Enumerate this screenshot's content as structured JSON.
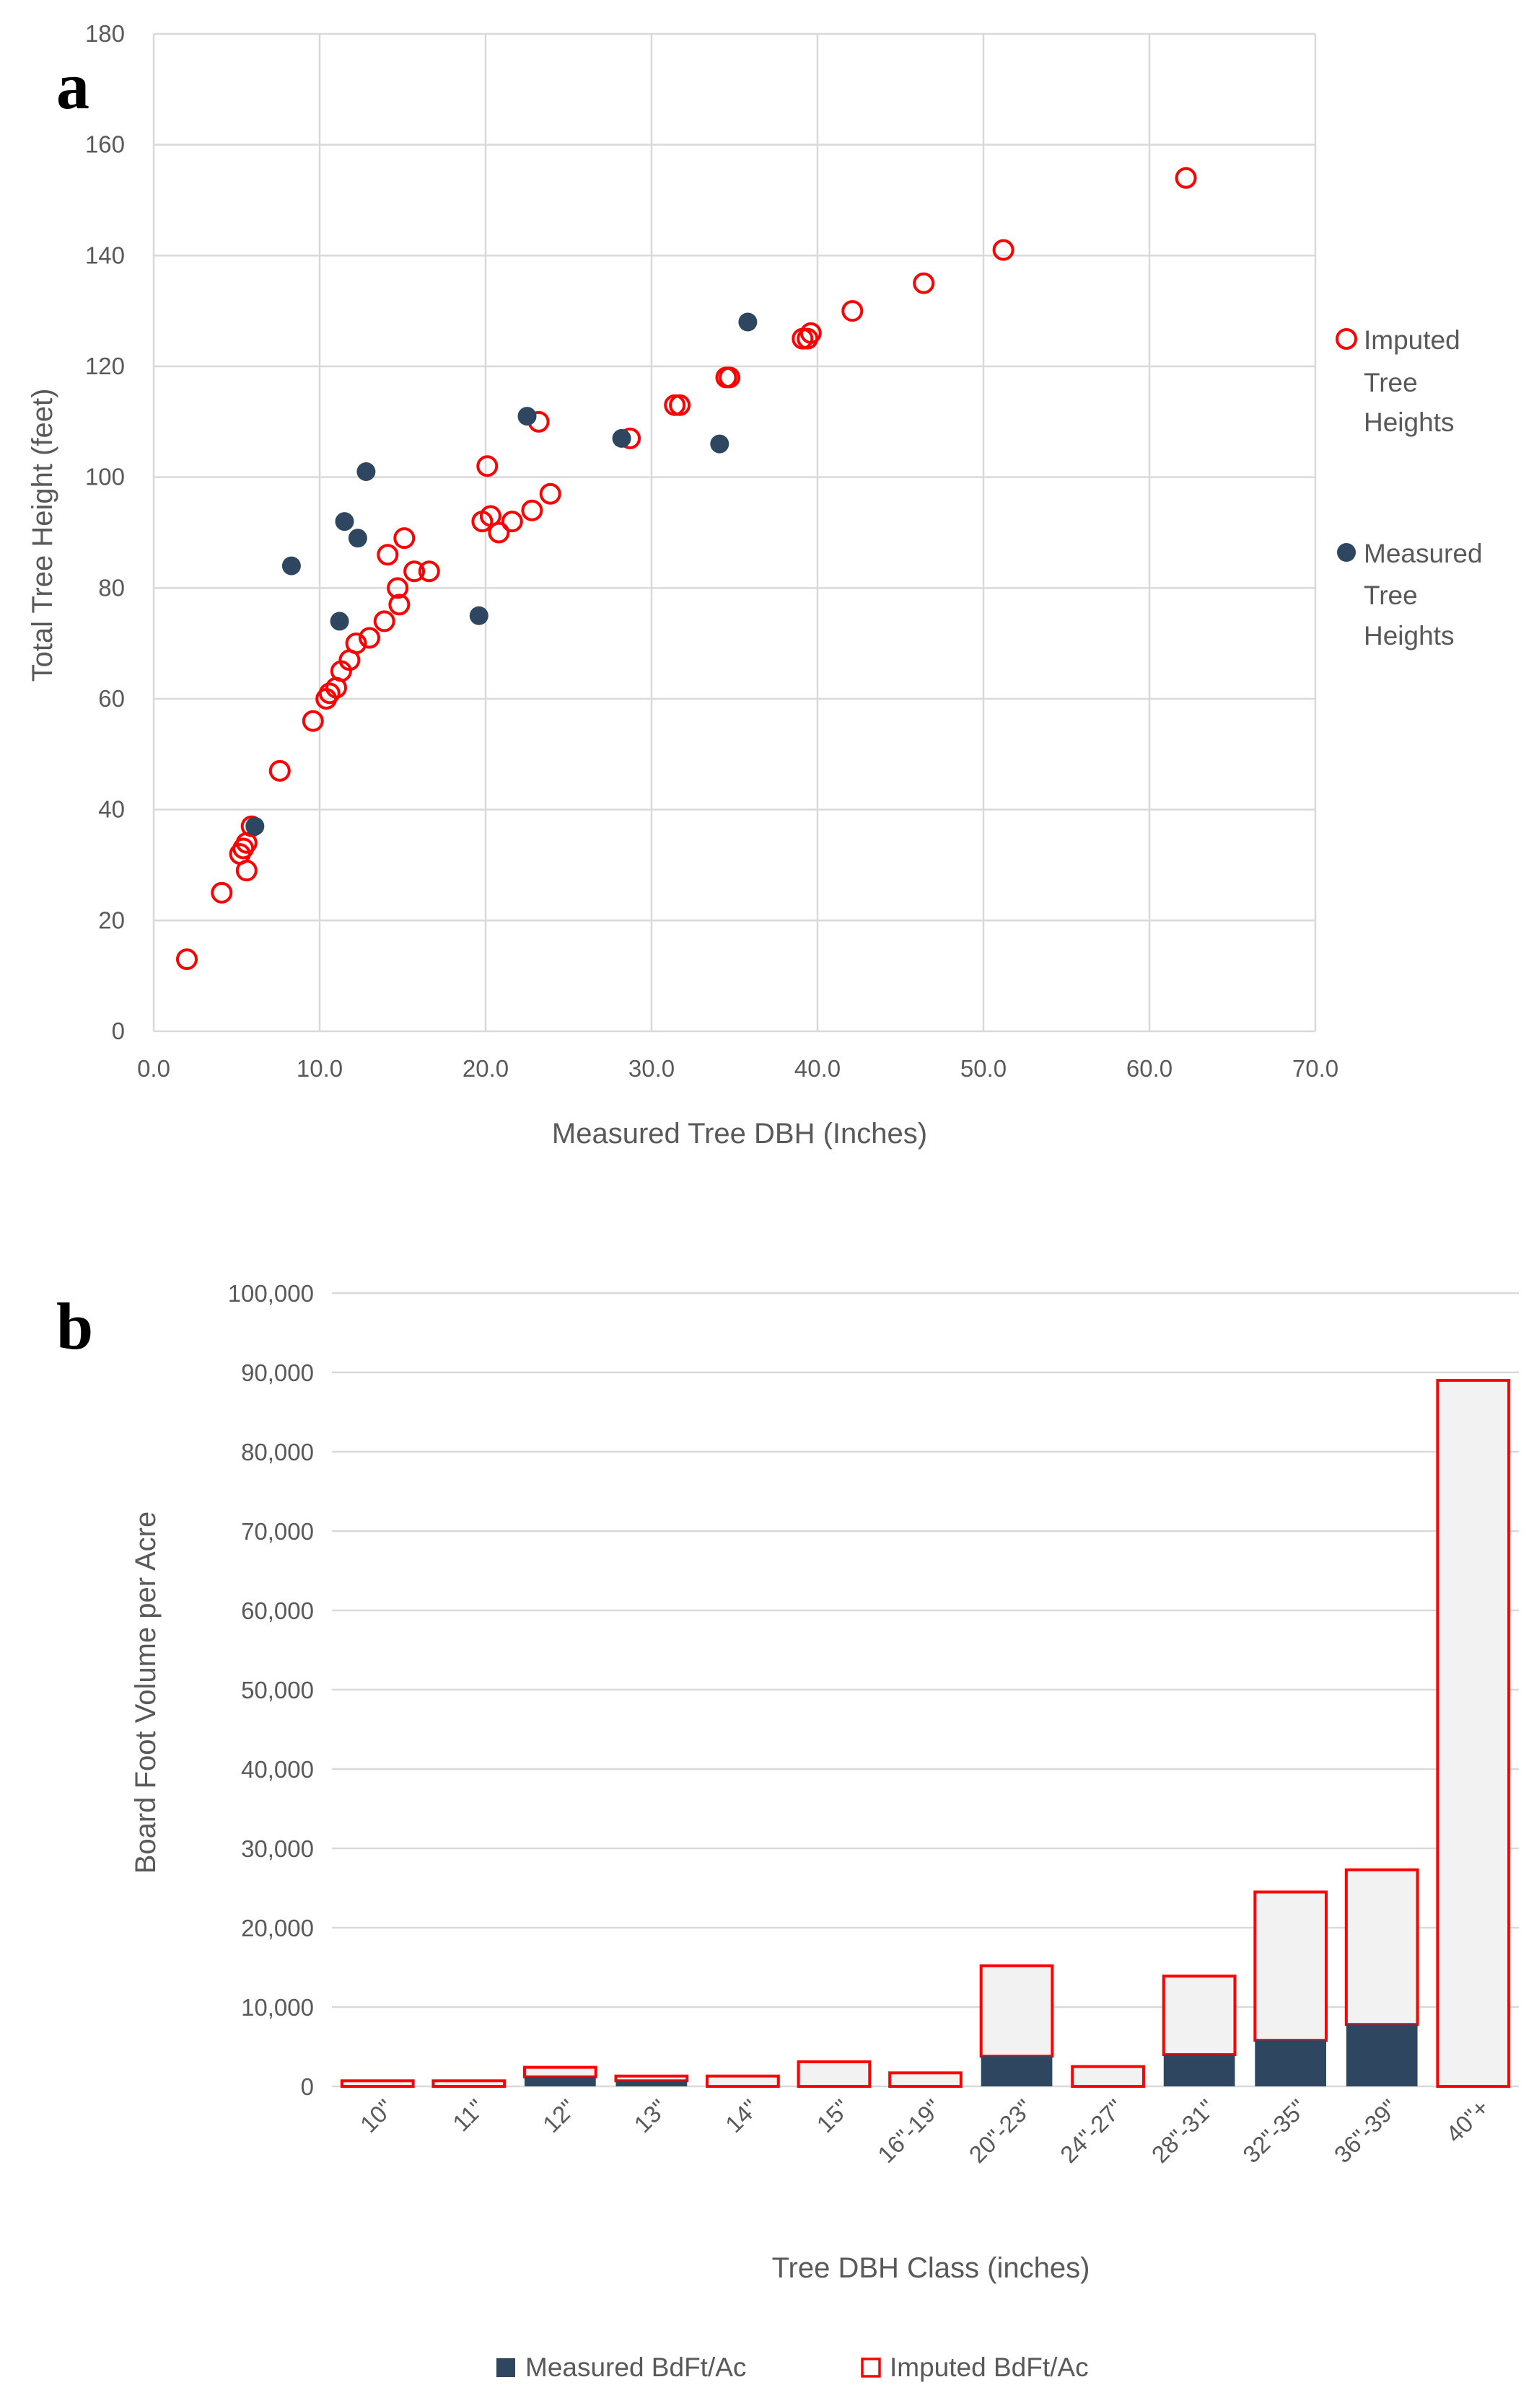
{
  "panels": {
    "a": "a",
    "b": "b"
  },
  "colors": {
    "imputed": "#ff0000",
    "measured": "#2e4660",
    "bar_fill": "#f2f2f2",
    "grid": "#d9d9d9",
    "text": "#595959"
  },
  "chart_data": [
    {
      "type": "scatter",
      "title": "",
      "xlabel": "Measured Tree DBH (Inches)",
      "ylabel": "Total Tree Height (feet)",
      "xlim": [
        0,
        70
      ],
      "ylim": [
        0,
        180
      ],
      "x_ticks": [
        "0.0",
        "10.0",
        "20.0",
        "30.0",
        "40.0",
        "50.0",
        "60.0",
        "70.0"
      ],
      "y_ticks": [
        "0",
        "20",
        "40",
        "60",
        "80",
        "100",
        "120",
        "140",
        "160",
        "180"
      ],
      "grid": true,
      "legend_position": "right",
      "series": [
        {
          "name": "Imputed Tree Heights",
          "legend_lines": [
            "Imputed",
            "Tree",
            "Heights"
          ],
          "marker": "open-circle",
          "points": [
            [
              2.0,
              13
            ],
            [
              4.1,
              25
            ],
            [
              5.2,
              32
            ],
            [
              5.4,
              33
            ],
            [
              5.6,
              34
            ],
            [
              5.6,
              29
            ],
            [
              5.9,
              37
            ],
            [
              7.6,
              47
            ],
            [
              9.6,
              56
            ],
            [
              10.4,
              60
            ],
            [
              10.6,
              61
            ],
            [
              11.0,
              62
            ],
            [
              11.3,
              65
            ],
            [
              11.8,
              67
            ],
            [
              12.2,
              70
            ],
            [
              13.0,
              71
            ],
            [
              13.9,
              74
            ],
            [
              14.1,
              86
            ],
            [
              14.7,
              80
            ],
            [
              14.8,
              77
            ],
            [
              15.1,
              89
            ],
            [
              15.7,
              83
            ],
            [
              16.6,
              83
            ],
            [
              19.8,
              92
            ],
            [
              20.1,
              102
            ],
            [
              20.3,
              93
            ],
            [
              20.8,
              90
            ],
            [
              21.6,
              92
            ],
            [
              22.8,
              94
            ],
            [
              23.2,
              110
            ],
            [
              23.9,
              97
            ],
            [
              28.7,
              107
            ],
            [
              31.4,
              113
            ],
            [
              31.7,
              113
            ],
            [
              34.5,
              118
            ],
            [
              34.7,
              118
            ],
            [
              39.1,
              125
            ],
            [
              39.4,
              125
            ],
            [
              39.6,
              126
            ],
            [
              42.1,
              130
            ],
            [
              46.4,
              135
            ],
            [
              51.2,
              141
            ],
            [
              62.2,
              154
            ]
          ]
        },
        {
          "name": "Measured Tree Heights",
          "legend_lines": [
            "Measured",
            "Tree",
            "Heights"
          ],
          "marker": "filled-circle",
          "points": [
            [
              6.1,
              37
            ],
            [
              8.3,
              84
            ],
            [
              11.2,
              74
            ],
            [
              11.5,
              92
            ],
            [
              12.3,
              89
            ],
            [
              12.8,
              101
            ],
            [
              19.6,
              75
            ],
            [
              22.5,
              111
            ],
            [
              28.2,
              107
            ],
            [
              34.1,
              106
            ],
            [
              35.8,
              128
            ]
          ]
        }
      ]
    },
    {
      "type": "bar",
      "stacked": true,
      "title": "",
      "xlabel": "Tree DBH Class (inches)",
      "ylabel": "Board Foot Volume per Acre",
      "ylim": [
        0,
        100000
      ],
      "y_ticks": [
        "0",
        "10,000",
        "20,000",
        "30,000",
        "40,000",
        "50,000",
        "60,000",
        "70,000",
        "80,000",
        "90,000",
        "100,000"
      ],
      "grid": true,
      "legend_position": "bottom",
      "categories": [
        "10\"",
        "11\"",
        "12\"",
        "13\"",
        "14\"",
        "15\"",
        "16\"-19\"",
        "20\"-23\"",
        "24\"-27\"",
        "28\"-31\"",
        "32\"-35\"",
        "36\"-39\"",
        "40\"+"
      ],
      "series": [
        {
          "name": "Measured BdFt/Ac",
          "values": [
            0,
            0,
            1200,
            700,
            0,
            0,
            0,
            3800,
            0,
            4000,
            5800,
            7800,
            0
          ]
        },
        {
          "name": "Imputed BdFt/Ac",
          "values": [
            700,
            700,
            1200,
            600,
            1300,
            3100,
            1700,
            11400,
            2500,
            9900,
            18700,
            19500,
            89000
          ]
        }
      ]
    }
  ]
}
